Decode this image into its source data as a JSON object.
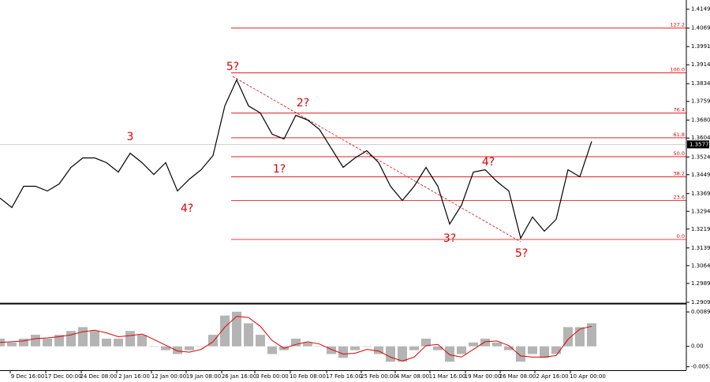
{
  "chart_data": [
    {
      "type": "line",
      "series": [
        {
          "name": "Price",
          "color": "#000000",
          "values": [
            1.335,
            1.331,
            1.34,
            1.34,
            1.338,
            1.341,
            1.348,
            1.352,
            1.352,
            1.35,
            1.346,
            1.354,
            1.35,
            1.345,
            1.35,
            1.338,
            1.343,
            1.347,
            1.353,
            1.374,
            1.385,
            1.374,
            1.371,
            1.362,
            1.36,
            1.37,
            1.368,
            1.364,
            1.356,
            1.348,
            1.352,
            1.355,
            1.35,
            1.34,
            1.334,
            1.34,
            1.348,
            1.34,
            1.324,
            1.332,
            1.346,
            1.347,
            1.342,
            1.338,
            1.318,
            1.327,
            1.321,
            1.326,
            1.347,
            1.344,
            1.359
          ]
        }
      ],
      "ylim": [
        1.2905,
        1.4188
      ],
      "yticks": [
        1.4149,
        1.4069,
        1.3991,
        1.3914,
        1.3834,
        1.3759,
        {
          "value": 1.368,
          "label": "1.3680"
        },
        1.3604,
        1.3524,
        1.3449,
        1.3369,
        1.3294,
        1.3219,
        1.3139,
        1.3064,
        1.2989,
        1.2909
      ],
      "current_price": 1.3577,
      "fib_levels": [
        {
          "label": "127.2",
          "value": 1.4069
        },
        {
          "label": "100.0",
          "value": 1.388
        },
        {
          "label": "76.4",
          "value": 1.371
        },
        {
          "label": "61.8",
          "value": 1.3605
        },
        {
          "label": "50.0",
          "value": 1.3525
        },
        {
          "label": "38.2",
          "value": 1.344
        },
        {
          "label": "23.6",
          "value": 1.334
        },
        {
          "label": "0.0",
          "value": 1.3175
        }
      ],
      "fib_color": "#e00000",
      "annotations": [
        "5?",
        "3",
        "4?",
        "1?",
        "2?",
        "3?",
        "4?",
        "5?"
      ],
      "x_labels": [
        "9 Dec 16:00",
        "17 Dec 00:00",
        "24 Dec 08:00",
        "2 Jan 16:00",
        "12 Jan 00:00",
        "19 Jan 08:00",
        "26 Jan 16:00",
        "3 Feb 00:00",
        "10 Feb 08:00",
        "17 Feb 16:00",
        "25 Feb 00:00",
        "4 Mar 08:00",
        "11 Mar 16:00",
        "19 Mar 00:00",
        "26 Mar 08:00",
        "2 Apr 16:00",
        "10 Apr 00:00"
      ]
    },
    {
      "type": "oscillator",
      "series": [
        {
          "name": "Histogram",
          "color": "#b4b4b4",
          "values": [
            0.002,
            0.001,
            0.002,
            0.003,
            0.002,
            0.003,
            0.004,
            0.005,
            0.004,
            0.002,
            0.002,
            0.004,
            0.003,
            0.0,
            -0.001,
            -0.002,
            -0.001,
            0.0,
            0.003,
            0.008,
            0.009,
            0.006,
            0.003,
            -0.002,
            -0.001,
            0.002,
            0.001,
            0.0,
            -0.002,
            -0.003,
            -0.001,
            0.0,
            -0.002,
            -0.004,
            -0.004,
            -0.001,
            0.002,
            -0.001,
            -0.004,
            -0.002,
            0.001,
            0.002,
            0.001,
            -0.001,
            -0.004,
            -0.002,
            -0.003,
            -0.002,
            0.005,
            0.005,
            0.006
          ]
        },
        {
          "name": "Signal",
          "color": "#e00000",
          "values": [
            0.001,
            0.0012,
            0.0014,
            0.002,
            0.0022,
            0.0025,
            0.003,
            0.0038,
            0.0042,
            0.0035,
            0.0025,
            0.0028,
            0.0032,
            0.0018,
            0.0003,
            -0.0012,
            -0.0015,
            -0.0008,
            0.0012,
            0.005,
            0.0078,
            0.0075,
            0.0052,
            0.0015,
            -0.0005,
            0.0005,
            0.0012,
            0.0006,
            -0.0008,
            -0.002,
            -0.0018,
            -0.0008,
            -0.0012,
            -0.0028,
            -0.0038,
            -0.0028,
            0.0002,
            0.0005,
            -0.0022,
            -0.0028,
            -0.0008,
            0.0012,
            0.0014,
            0.0002,
            -0.0025,
            -0.0028,
            -0.0028,
            -0.0024,
            0.0018,
            0.0045,
            0.0052
          ]
        }
      ],
      "ylim": [
        -0.0062,
        0.0108
      ],
      "yticks": [
        0.00895,
        {
          "value": 0,
          "label": "0.00"
        },
        -0.0053
      ]
    }
  ]
}
